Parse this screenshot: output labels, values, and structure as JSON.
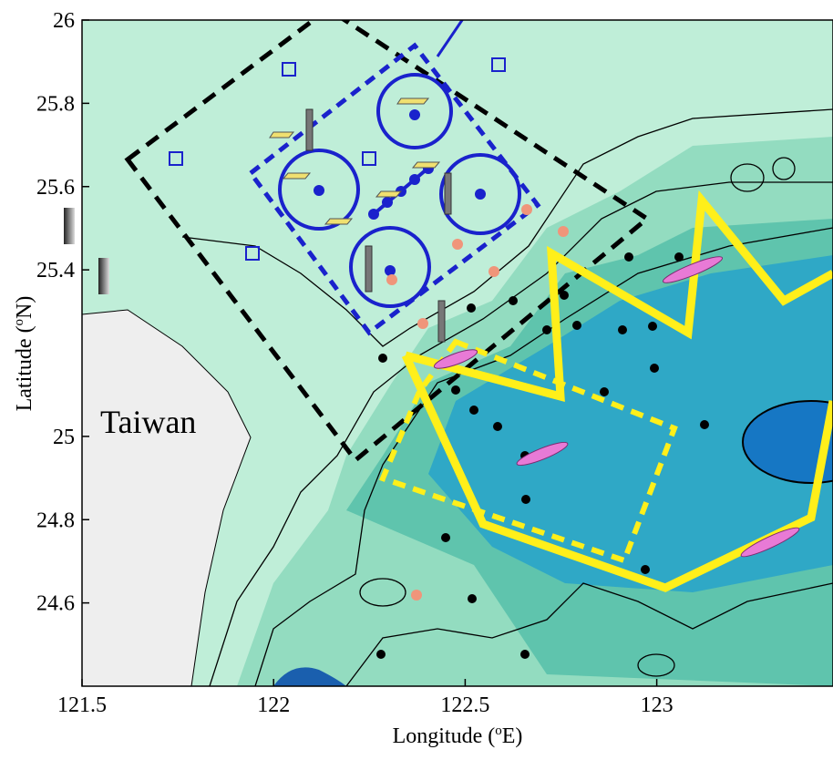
{
  "map": {
    "xlim": [
      121.5,
      123.46
    ],
    "ylim": [
      24.4,
      26
    ],
    "xticks": [
      121.5,
      122,
      122.5,
      123
    ],
    "yticks": [
      24.6,
      24.8,
      25,
      25.4,
      25.6,
      25.8,
      26
    ],
    "x_label": [
      "Longitude (",
      "o",
      "E)"
    ],
    "y_label": [
      "Latitude (",
      "o",
      "N)"
    ],
    "place_label": "Taiwan"
  }
}
